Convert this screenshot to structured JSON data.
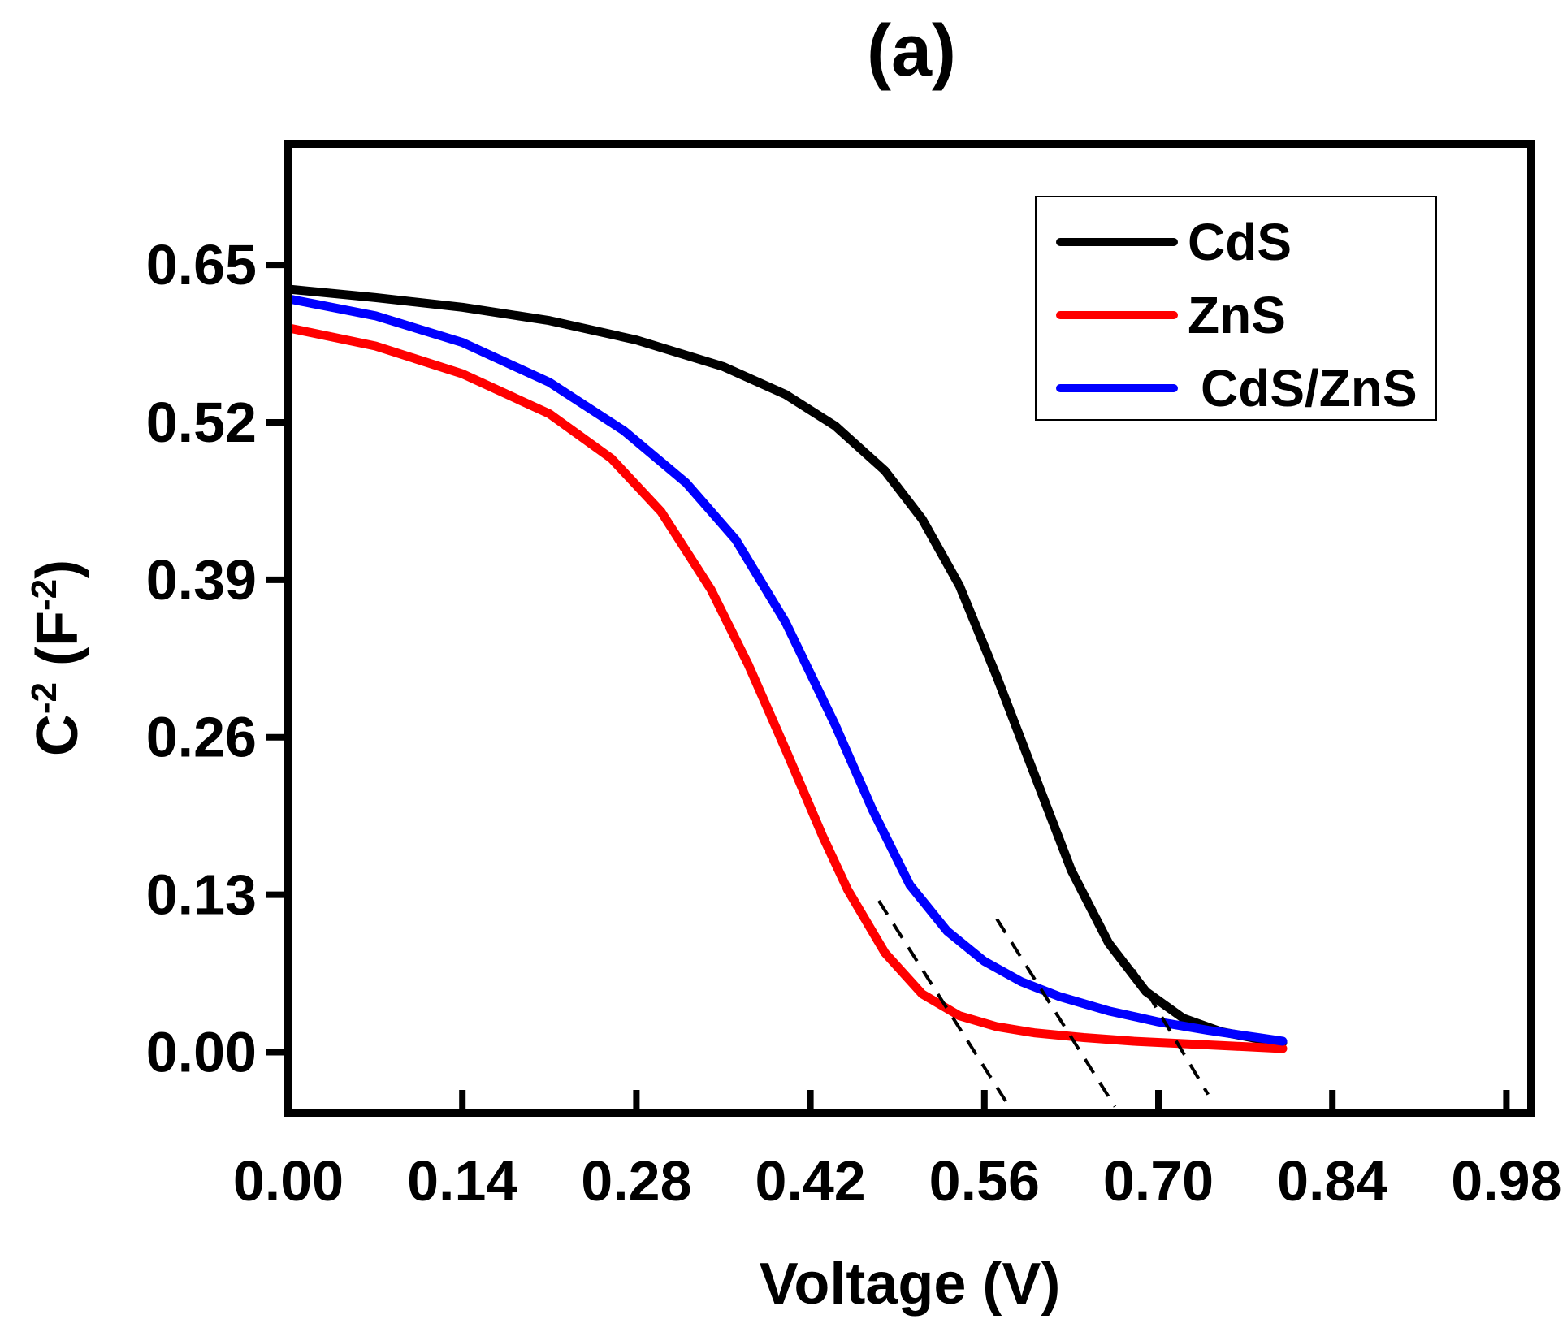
{
  "chart_data": {
    "type": "line",
    "title": "(a)",
    "xlabel": "Voltage (V)",
    "ylabel": {
      "base": "C",
      "base_sup": "-2",
      "unit_open": " (F",
      "unit_sup": "-2",
      "unit_close": ")"
    },
    "xlim": [
      0.0,
      1.0
    ],
    "ylim": [
      -0.05,
      0.75
    ],
    "x_ticks": [
      "0.00",
      "0.14",
      "0.28",
      "0.42",
      "0.56",
      "0.70",
      "0.84",
      "0.98"
    ],
    "y_ticks": [
      "0.00",
      "0.13",
      "0.26",
      "0.39",
      "0.52",
      "0.65"
    ],
    "grid": false,
    "legend_position": "top-right",
    "series": [
      {
        "name": "CdS",
        "color": "#000000",
        "x": [
          0.0,
          0.07,
          0.14,
          0.21,
          0.28,
          0.35,
          0.4,
          0.44,
          0.48,
          0.51,
          0.54,
          0.57,
          0.6,
          0.63,
          0.66,
          0.69,
          0.72,
          0.75,
          0.78,
          0.8
        ],
        "y": [
          0.63,
          0.623,
          0.615,
          0.604,
          0.588,
          0.566,
          0.543,
          0.517,
          0.48,
          0.44,
          0.385,
          0.31,
          0.23,
          0.15,
          0.09,
          0.05,
          0.028,
          0.017,
          0.011,
          0.008
        ]
      },
      {
        "name": "ZnS",
        "color": "#ff0000",
        "x": [
          0.0,
          0.07,
          0.14,
          0.21,
          0.26,
          0.3,
          0.34,
          0.37,
          0.4,
          0.43,
          0.45,
          0.48,
          0.51,
          0.54,
          0.57,
          0.6,
          0.64,
          0.68,
          0.72,
          0.76,
          0.8
        ],
        "y": [
          0.598,
          0.583,
          0.56,
          0.527,
          0.49,
          0.446,
          0.382,
          0.32,
          0.25,
          0.178,
          0.134,
          0.082,
          0.048,
          0.03,
          0.021,
          0.016,
          0.012,
          0.009,
          0.007,
          0.005,
          0.003
        ]
      },
      {
        "name": "CdS/ZnS",
        "color": "#0000ff",
        "x": [
          0.0,
          0.07,
          0.14,
          0.21,
          0.27,
          0.32,
          0.36,
          0.4,
          0.44,
          0.47,
          0.5,
          0.53,
          0.56,
          0.59,
          0.62,
          0.66,
          0.7,
          0.74,
          0.78,
          0.8
        ],
        "y": [
          0.622,
          0.608,
          0.586,
          0.553,
          0.513,
          0.47,
          0.423,
          0.355,
          0.27,
          0.2,
          0.138,
          0.1,
          0.075,
          0.058,
          0.046,
          0.034,
          0.025,
          0.018,
          0.012,
          0.009
        ]
      }
    ],
    "tangent_lines": [
      {
        "x": [
          0.475,
          0.58
        ],
        "y": [
          0.125,
          -0.045
        ]
      },
      {
        "x": [
          0.57,
          0.665
        ],
        "y": [
          0.11,
          -0.045
        ]
      },
      {
        "x": [
          0.68,
          0.74
        ],
        "y": [
          0.068,
          -0.035
        ]
      }
    ]
  }
}
